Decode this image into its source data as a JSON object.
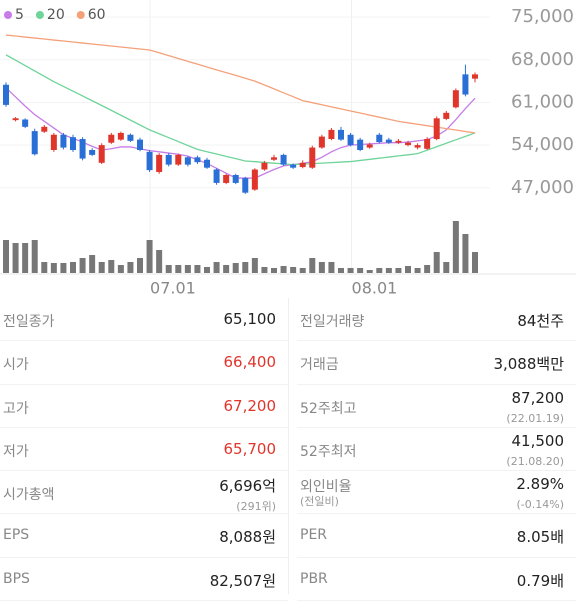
{
  "chart_data": {
    "type": "candlestick",
    "legend": [
      {
        "name": "5",
        "color": "#c77ce8"
      },
      {
        "name": "20",
        "color": "#6fd49a"
      },
      {
        "name": "60",
        "color": "#f4a17a"
      }
    ],
    "up_color": "#e0352b",
    "down_color": "#2a6fd6",
    "volume_color": "#777777",
    "ylim": [
      45000,
      77800
    ],
    "yticks": [
      {
        "value": 47000,
        "label": "47,000"
      },
      {
        "value": 54000,
        "label": "54,000"
      },
      {
        "value": 61000,
        "label": "61,000"
      },
      {
        "value": 68000,
        "label": "68,000"
      },
      {
        "value": 75000,
        "label": "75,000"
      }
    ],
    "xlim": [
      0,
      49
    ],
    "xticks": [
      {
        "value": 15.05,
        "label": "07.01"
      },
      {
        "value": 36.1,
        "label": "08.01"
      }
    ],
    "grid": true,
    "open": [
      63900,
      58100,
      58200,
      56300,
      56200,
      53200,
      55700,
      55300,
      55000,
      53200,
      51100,
      54400,
      54900,
      55700,
      54900,
      52900,
      49600,
      52400,
      50800,
      52000,
      52000,
      51600,
      50000,
      47800,
      49100,
      48600,
      46700,
      50000,
      51600,
      52400,
      50800,
      50400,
      50300,
      53600,
      55000,
      56500,
      55700,
      54900,
      53600,
      55700,
      54900,
      54400,
      54000,
      53600,
      53400,
      55000,
      58300,
      60200,
      65600,
      64900
    ],
    "high": [
      64300,
      58600,
      58400,
      56700,
      57300,
      56000,
      56000,
      55700,
      55300,
      53500,
      54300,
      56000,
      56200,
      55900,
      55200,
      53200,
      52700,
      52700,
      52600,
      52200,
      52300,
      51900,
      50200,
      49300,
      49300,
      48800,
      50200,
      51400,
      52400,
      52600,
      51000,
      51500,
      53900,
      55700,
      56800,
      57000,
      56000,
      55200,
      54400,
      56000,
      55200,
      55000,
      54700,
      54300,
      55300,
      58700,
      59600,
      63300,
      67200,
      65900
    ],
    "low": [
      60300,
      57900,
      56800,
      52300,
      56000,
      52900,
      53300,
      52900,
      51500,
      52200,
      50900,
      54200,
      54700,
      54500,
      53000,
      49600,
      49300,
      50500,
      50600,
      50500,
      50900,
      50100,
      47500,
      47600,
      47600,
      46000,
      46500,
      49800,
      51400,
      50600,
      50100,
      50200,
      50100,
      53400,
      54800,
      54700,
      53800,
      53000,
      53400,
      54300,
      54200,
      54200,
      53800,
      53300,
      53200,
      54800,
      58100,
      60000,
      62000,
      64300
    ],
    "close": [
      60600,
      58400,
      57000,
      52500,
      57000,
      55700,
      53600,
      53200,
      51800,
      52400,
      54000,
      55700,
      56000,
      54700,
      53200,
      49900,
      52400,
      50800,
      52400,
      50800,
      51200,
      50300,
      47800,
      49100,
      47800,
      46200,
      50000,
      51100,
      52000,
      50800,
      50300,
      51100,
      53600,
      55400,
      56500,
      54900,
      54000,
      53200,
      54100,
      54500,
      54400,
      54700,
      54400,
      54000,
      55000,
      58400,
      59300,
      63000,
      62300,
      65600
    ],
    "volume": [
      132,
      120,
      120,
      132,
      44,
      40,
      40,
      44,
      60,
      72,
      44,
      52,
      32,
      44,
      60,
      132,
      92,
      32,
      32,
      32,
      32,
      24,
      44,
      32,
      40,
      44,
      60,
      24,
      20,
      28,
      24,
      20,
      60,
      44,
      44,
      20,
      20,
      20,
      12,
      20,
      20,
      20,
      28,
      20,
      32,
      84,
      44,
      208,
      156,
      84
    ],
    "volume_lim": [
      0,
      240
    ],
    "series": [
      {
        "name": "5",
        "color": "#c77ce8",
        "values": [
          63400,
          61900,
          60400,
          59000,
          57900,
          56800,
          55700,
          55100,
          54500,
          53800,
          53200,
          53400,
          53700,
          53700,
          53400,
          53100,
          52900,
          52700,
          52500,
          52200,
          51600,
          51000,
          50200,
          49400,
          48600,
          48600,
          48600,
          49300,
          50000,
          50600,
          50800,
          51000,
          51300,
          52000,
          52900,
          53600,
          54000,
          54100,
          54200,
          54300,
          54400,
          54400,
          54500,
          54700,
          54900,
          55500,
          56500,
          58200,
          60000,
          61700
        ]
      },
      {
        "name": "20",
        "color": "#6fd49a",
        "values": [
          68800,
          67920,
          67040,
          66160,
          65280,
          64400,
          63620,
          62840,
          62060,
          61280,
          60500,
          59700,
          58900,
          58100,
          57300,
          56500,
          55860,
          55220,
          54580,
          53940,
          53300,
          52920,
          52540,
          52160,
          51780,
          51400,
          51280,
          51160,
          51040,
          50920,
          50800,
          50880,
          50970,
          51050,
          51130,
          51220,
          51300,
          51490,
          51670,
          51860,
          52040,
          52230,
          52410,
          52600,
          53170,
          53730,
          54300,
          54870,
          55430,
          56000
        ]
      },
      {
        "name": "60",
        "color": "#f4a17a",
        "values": [
          72050,
          71890,
          71720,
          71560,
          71400,
          71230,
          71070,
          70910,
          70740,
          70580,
          70420,
          70250,
          70090,
          69930,
          69760,
          69600,
          69140,
          68670,
          68210,
          67740,
          67280,
          66820,
          66350,
          65890,
          65430,
          64960,
          64500,
          63860,
          63220,
          62580,
          61940,
          61300,
          60960,
          60620,
          60280,
          59940,
          59600,
          59260,
          58920,
          58580,
          58240,
          57900,
          57660,
          57430,
          57190,
          56950,
          56710,
          56480,
          56240,
          56000
        ]
      }
    ]
  },
  "stats": {
    "left": [
      {
        "label": "전일종가",
        "value": "65,100"
      },
      {
        "label": "시가",
        "value": "66,400",
        "color": "#e0352b"
      },
      {
        "label": "고가",
        "value": "67,200",
        "color": "#e0352b"
      },
      {
        "label": "저가",
        "value": "65,700",
        "color": "#e0352b"
      },
      {
        "label": "시가총액",
        "value": "6,696억",
        "sub": "(291위)"
      },
      {
        "label": "EPS",
        "value": "8,088원"
      },
      {
        "label": "BPS",
        "value": "82,507원"
      }
    ],
    "right": [
      {
        "label": "전일거래량",
        "value": "84천주"
      },
      {
        "label": "거래금",
        "value": "3,088백만"
      },
      {
        "label": "52주최고",
        "value": "87,200",
        "sub": "(22.01.19)"
      },
      {
        "label": "52주최저",
        "value": "41,500",
        "sub": "(21.08.20)"
      },
      {
        "label": "외인비율",
        "label_sub": "(전일비)",
        "value": "2.89%",
        "sub": "(-0.14%)"
      },
      {
        "label": "PER",
        "value": "8.05배"
      },
      {
        "label": "PBR",
        "value": "0.79배"
      }
    ]
  }
}
